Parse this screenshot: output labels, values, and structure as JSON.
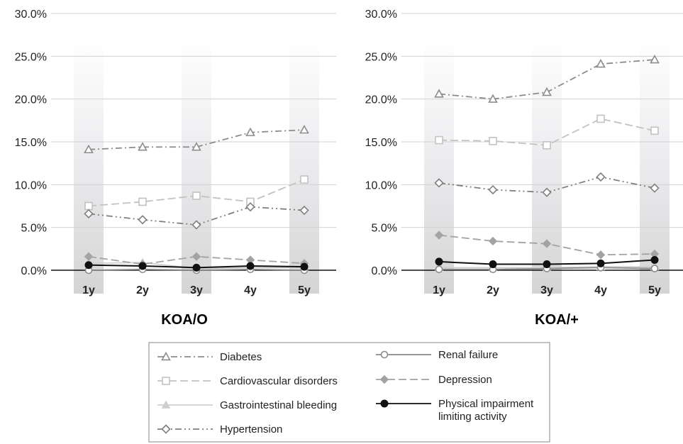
{
  "chart_data": [
    {
      "type": "line",
      "title": "KOA/O",
      "categories": [
        "1y",
        "2y",
        "3y",
        "4y",
        "5y"
      ],
      "ylim": [
        0,
        30
      ],
      "y_ticks": [
        "0.0%",
        "5.0%",
        "10.0%",
        "15.0%",
        "20.0%",
        "25.0%",
        "30.0%"
      ],
      "grid": true,
      "series": [
        {
          "name": "Diabetes",
          "values": [
            14.1,
            14.4,
            14.4,
            16.1,
            16.4
          ]
        },
        {
          "name": "Cardiovascular disorders",
          "values": [
            7.5,
            8.0,
            8.7,
            8.0,
            10.6
          ]
        },
        {
          "name": "Gastrointestinal bleeding",
          "values": [
            0.8,
            0.9,
            0.2,
            0.3,
            0.3
          ]
        },
        {
          "name": "Hypertension",
          "values": [
            6.6,
            5.9,
            5.3,
            7.4,
            7.0
          ]
        },
        {
          "name": "Renal failure",
          "values": [
            0.0,
            0.1,
            0.0,
            0.1,
            0.0
          ]
        },
        {
          "name": "Depression",
          "values": [
            1.6,
            0.7,
            1.6,
            1.2,
            0.8
          ]
        },
        {
          "name": "Physical impairment limiting activity",
          "values": [
            0.6,
            0.5,
            0.3,
            0.5,
            0.4
          ]
        }
      ]
    },
    {
      "type": "line",
      "title": "KOA/+",
      "categories": [
        "1y",
        "2y",
        "3y",
        "4y",
        "5y"
      ],
      "ylim": [
        0,
        30
      ],
      "y_ticks": [
        "0.0%",
        "5.0%",
        "10.0%",
        "15.0%",
        "20.0%",
        "25.0%",
        "30.0%"
      ],
      "grid": true,
      "series": [
        {
          "name": "Diabetes",
          "values": [
            20.6,
            20.0,
            20.8,
            24.1,
            24.6
          ]
        },
        {
          "name": "Cardiovascular disorders",
          "values": [
            15.2,
            15.1,
            14.6,
            17.7,
            16.3
          ]
        },
        {
          "name": "Gastrointestinal bleeding",
          "values": [
            0.3,
            0.3,
            0.3,
            0.4,
            0.4
          ]
        },
        {
          "name": "Hypertension",
          "values": [
            10.2,
            9.4,
            9.1,
            10.9,
            9.6
          ]
        },
        {
          "name": "Renal failure",
          "values": [
            0.1,
            0.1,
            0.2,
            0.3,
            0.2
          ]
        },
        {
          "name": "Depression",
          "values": [
            4.1,
            3.4,
            3.1,
            1.8,
            1.9
          ]
        },
        {
          "name": "Physical impairment limiting activity",
          "values": [
            1.0,
            0.7,
            0.7,
            0.8,
            1.2
          ]
        }
      ]
    }
  ],
  "styles": [
    {
      "color": "#8c8c8c",
      "dash": "9 4 2 4",
      "marker": "triangle-open"
    },
    {
      "color": "#c2c2c2",
      "dash": "11 5",
      "marker": "square-open"
    },
    {
      "color": "#cfcfcf",
      "dash": "",
      "marker": "triangle-filled"
    },
    {
      "color": "#7f7f7f",
      "dash": "9 4 2 4 2 4",
      "marker": "diamond-open"
    },
    {
      "color": "#8a8a8a",
      "dash": "",
      "marker": "circle-open"
    },
    {
      "color": "#a3a3a3",
      "dash": "11 5",
      "marker": "diamond-filled"
    },
    {
      "color": "#111111",
      "dash": "",
      "marker": "circle-filled"
    }
  ],
  "legend": {
    "placement": "bottom",
    "items": [
      {
        "series": 0,
        "lines": [
          "Diabetes"
        ]
      },
      {
        "series": 1,
        "lines": [
          "Cardiovascular disorders"
        ]
      },
      {
        "series": 2,
        "lines": [
          "Gastrointestinal bleeding"
        ]
      },
      {
        "series": 3,
        "lines": [
          "Hypertension"
        ]
      },
      {
        "series": 4,
        "lines": [
          "Renal failure"
        ]
      },
      {
        "series": 5,
        "lines": [
          "Depression"
        ]
      },
      {
        "series": 6,
        "lines": [
          "Physical impairment",
          "limiting activity"
        ]
      }
    ]
  }
}
